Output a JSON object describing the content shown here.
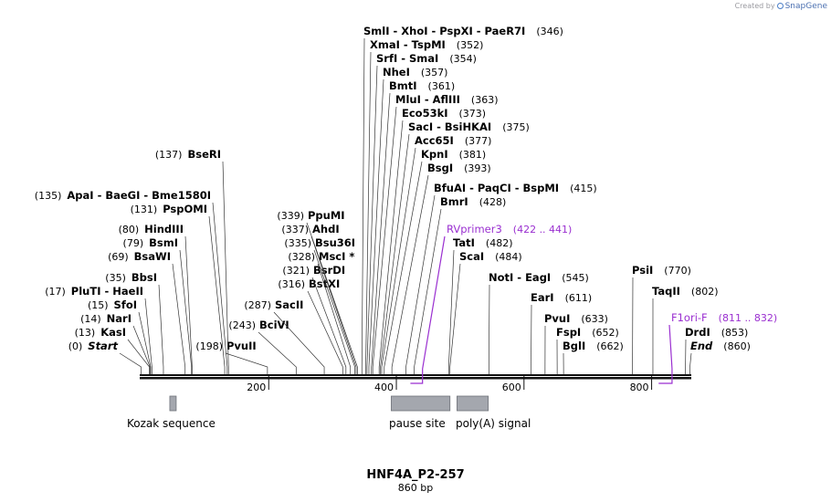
{
  "credit": {
    "prefix": "Created by",
    "brand": "SnapGene"
  },
  "map": {
    "title": "HNF4A_P2-257",
    "length_label": "860 bp",
    "length": 860
  },
  "ticks": [
    {
      "pos": 200,
      "label": "200"
    },
    {
      "pos": 400,
      "label": "400"
    },
    {
      "pos": 600,
      "label": "600"
    },
    {
      "pos": 800,
      "label": "800"
    }
  ],
  "sites": [
    {
      "site": 346,
      "side": "right",
      "names": [
        "SmlI",
        "XhoI",
        "PspXI",
        "PaeR7I"
      ],
      "pos": "(346)"
    },
    {
      "site": 352,
      "side": "right",
      "names": [
        "XmaI",
        "TspMI"
      ],
      "pos": "(352)"
    },
    {
      "site": 354,
      "side": "right",
      "names": [
        "SrfI",
        "SmaI"
      ],
      "pos": "(354)"
    },
    {
      "site": 357,
      "side": "right",
      "names": [
        "NheI"
      ],
      "pos": "(357)"
    },
    {
      "site": 361,
      "side": "right",
      "names": [
        "BmtI"
      ],
      "pos": "(361)"
    },
    {
      "site": 363,
      "side": "right",
      "names": [
        "MluI",
        "AflIII"
      ],
      "pos": "(363)"
    },
    {
      "site": 373,
      "side": "right",
      "names": [
        "Eco53kI"
      ],
      "pos": "(373)"
    },
    {
      "site": 375,
      "side": "right",
      "names": [
        "SacI",
        "BsiHKAI"
      ],
      "pos": "(375)"
    },
    {
      "site": 377,
      "side": "right",
      "names": [
        "Acc65I"
      ],
      "pos": "(377)"
    },
    {
      "site": 381,
      "side": "right",
      "names": [
        "KpnI"
      ],
      "pos": "(381)"
    },
    {
      "site": 393,
      "side": "right",
      "names": [
        "BsgI"
      ],
      "pos": "(393)"
    },
    {
      "site": 415,
      "side": "right",
      "names": [
        "BfuAI",
        "PaqCI",
        "BspMI"
      ],
      "pos": "(415)"
    },
    {
      "site": 428,
      "side": "right",
      "names": [
        "BmrI"
      ],
      "pos": "(428)"
    },
    {
      "site": 482,
      "side": "right",
      "names": [
        "TatI"
      ],
      "pos": "(482)"
    },
    {
      "site": 484,
      "side": "right",
      "names": [
        "ScaI"
      ],
      "pos": "(484)"
    },
    {
      "site": 545,
      "side": "right",
      "names": [
        "NotI",
        "EagI"
      ],
      "pos": "(545)"
    },
    {
      "site": 611,
      "side": "right",
      "names": [
        "EarI"
      ],
      "pos": "(611)"
    },
    {
      "site": 633,
      "side": "right",
      "names": [
        "PvuI"
      ],
      "pos": "(633)"
    },
    {
      "site": 652,
      "side": "right",
      "names": [
        "FspI"
      ],
      "pos": "(652)"
    },
    {
      "site": 662,
      "side": "right",
      "names": [
        "BglI"
      ],
      "pos": "(662)"
    },
    {
      "site": 770,
      "side": "right",
      "names": [
        "PsiI"
      ],
      "pos": "(770)"
    },
    {
      "site": 802,
      "side": "right",
      "names": [
        "TaqII"
      ],
      "pos": "(802)"
    },
    {
      "site": 853,
      "side": "right",
      "names": [
        "DrdI"
      ],
      "pos": "(853)"
    },
    {
      "site": 860,
      "side": "right",
      "names": [
        "End"
      ],
      "pos": "(860)",
      "italic": true
    },
    {
      "site": 198,
      "side": "right",
      "names": [
        "PvuII"
      ],
      "pos": "(198)",
      "pos_first": true
    },
    {
      "site": 243,
      "side": "right",
      "names": [
        "BciVI"
      ],
      "pos": "(243)",
      "pos_first": true
    },
    {
      "site": 287,
      "side": "right",
      "names": [
        "SacII"
      ],
      "pos": "(287)",
      "pos_first": true
    },
    {
      "site": 316,
      "side": "right",
      "names": [
        "BstXI"
      ],
      "pos": "(316)",
      "pos_first": true
    },
    {
      "site": 321,
      "side": "right",
      "names": [
        "BsrDI"
      ],
      "pos": "(321)",
      "pos_first": true
    },
    {
      "site": 328,
      "side": "right",
      "names": [
        "MscI *"
      ],
      "pos": "(328)",
      "pos_first": true
    },
    {
      "site": 335,
      "side": "right",
      "names": [
        "Bsu36I"
      ],
      "pos": "(335)",
      "pos_first": true
    },
    {
      "site": 337,
      "side": "right",
      "names": [
        "AhdI"
      ],
      "pos": "(337)",
      "pos_first": true
    },
    {
      "site": 339,
      "side": "right",
      "names": [
        "PpuMI"
      ],
      "pos": "(339)",
      "pos_first": true
    },
    {
      "site": 0,
      "side": "left",
      "names": [
        "Start"
      ],
      "pos": "(0)",
      "italic": true
    },
    {
      "site": 13,
      "side": "left",
      "names": [
        "KasI"
      ],
      "pos": "(13)"
    },
    {
      "site": 14,
      "side": "left",
      "names": [
        "NarI"
      ],
      "pos": "(14)"
    },
    {
      "site": 15,
      "side": "left",
      "names": [
        "SfoI"
      ],
      "pos": "(15)"
    },
    {
      "site": 17,
      "side": "left",
      "names": [
        "PluTI",
        "HaeII"
      ],
      "pos": "(17)"
    },
    {
      "site": 35,
      "side": "left",
      "names": [
        "BbsI"
      ],
      "pos": "(35)"
    },
    {
      "site": 69,
      "side": "left",
      "names": [
        "BsaWI"
      ],
      "pos": "(69)"
    },
    {
      "site": 79,
      "side": "left",
      "names": [
        "BsmI"
      ],
      "pos": "(79)"
    },
    {
      "site": 80,
      "side": "left",
      "names": [
        "HindIII"
      ],
      "pos": "(80)"
    },
    {
      "site": 131,
      "side": "left",
      "names": [
        "PspOMI"
      ],
      "pos": "(131)"
    },
    {
      "site": 135,
      "side": "left",
      "names": [
        "ApaI",
        "BaeGI",
        "Bme1580I"
      ],
      "pos": "(135)"
    },
    {
      "site": 137,
      "side": "left",
      "names": [
        "BseRI"
      ],
      "pos": "(137)"
    }
  ],
  "primers": [
    {
      "name": "RVprimer3",
      "range": "(422 .. 441)",
      "start": 422,
      "end": 441,
      "color": "#9a2fd0"
    },
    {
      "name": "F1ori-F",
      "range": "(811 .. 832)",
      "start": 811,
      "end": 832,
      "color": "#9a2fd0"
    }
  ],
  "features": [
    {
      "name": "Kozak sequence",
      "start": 45,
      "end": 55,
      "color": "#a4a7ae"
    },
    {
      "name": "pause site",
      "start": 392,
      "end": 484,
      "color": "#a4a7ae"
    },
    {
      "name": "poly(A) signal",
      "start": 495,
      "end": 544,
      "color": "#a4a7ae"
    }
  ]
}
